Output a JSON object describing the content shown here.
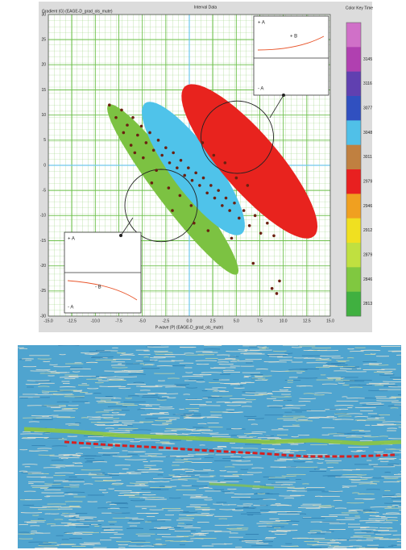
{
  "chart_data": {
    "type": "scatter",
    "title": "Interval Data",
    "ylabel": "Gradient (G) (EAGE-D_grad_ols_mute)",
    "xlabel": "P-wave (P) (EAGE-D_grad_ols_mute)",
    "xlim": [
      -15,
      15
    ],
    "ylim": [
      -30,
      30
    ],
    "xticks": [
      {
        "value": -15,
        "label": "-15.0"
      },
      {
        "value": -12.5,
        "label": "-12.5"
      },
      {
        "value": -10,
        "label": "-10.0"
      },
      {
        "value": -7.5,
        "label": "-7.5"
      },
      {
        "value": -5,
        "label": "-5.0"
      },
      {
        "value": -2.5,
        "label": "-2.5"
      },
      {
        "value": 0,
        "label": "0.0"
      },
      {
        "value": 2.5,
        "label": "2.5"
      },
      {
        "value": 5,
        "label": "5.0"
      },
      {
        "value": 7.5,
        "label": "7.5"
      },
      {
        "value": 10,
        "label": "10.0"
      },
      {
        "value": 12.5,
        "label": "12.5"
      },
      {
        "value": 15,
        "label": "15.0"
      }
    ],
    "yticks": [
      -30,
      -25,
      -20,
      -15,
      -10,
      -5,
      0,
      5,
      10,
      15,
      20,
      25,
      30
    ],
    "grid": true,
    "grid_color": "#6cc04a",
    "regions": [
      {
        "color": "#7cc242",
        "filled": true,
        "cx": -1.75,
        "cy": -4.8,
        "ax": 6.85,
        "ay": -16.85,
        "bx": 1.37,
        "by": 1.93
      },
      {
        "color": "#4fc3ea",
        "filled": true,
        "cx": 0.43,
        "cy": -0.64,
        "ax": 5.14,
        "ay": -13.0,
        "bx": 1.9,
        "by": 2.7
      },
      {
        "color": "#e8231e",
        "filled": true,
        "cx": 6.4,
        "cy": 0.8,
        "ax": 6.86,
        "ay": -14.9,
        "bx": 2.3,
        "by": 3.7
      },
      {
        "color": "#222222",
        "filled": false,
        "cx": 5.1,
        "cy": 5.6,
        "ax": 3.86,
        "ay": 0,
        "bx": 0,
        "by": 7.2
      },
      {
        "color": "#222222",
        "filled": false,
        "cx": -3.0,
        "cy": -8.0,
        "ax": 3.86,
        "ay": 0,
        "bx": 0,
        "by": 7.2
      }
    ],
    "points": {
      "color": "#6b2010",
      "x": [
        -8.5,
        -7.8,
        -7.2,
        -6.6,
        -6.0,
        -5.5,
        -5.1,
        -4.6,
        -4.2,
        -3.8,
        -3.3,
        -2.9,
        -2.5,
        -2.1,
        -1.7,
        -1.3,
        -0.9,
        -0.5,
        -0.1,
        0.3,
        0.7,
        1.1,
        1.5,
        1.9,
        2.3,
        2.7,
        3.1,
        3.5,
        3.9,
        4.3,
        4.8,
        5.3,
        5.8,
        6.4,
        7.0,
        7.6,
        8.3,
        9.0,
        -6.2,
        -4.9,
        -3.5,
        -2.2,
        -1.0,
        0.2,
        1.4,
        2.6,
        3.8,
        5.0,
        6.2,
        -7.0,
        -5.8,
        -4.0,
        -1.8,
        0.5,
        2.0,
        4.5,
        8.8,
        9.3,
        6.8,
        9.6
      ],
      "y": [
        12.0,
        9.5,
        11.0,
        8.0,
        9.5,
        6.0,
        7.8,
        4.5,
        6.5,
        3.0,
        5.0,
        2.0,
        3.5,
        0.5,
        2.5,
        -0.5,
        1.0,
        -2.0,
        -0.5,
        -3.0,
        -1.5,
        -4.0,
        -2.5,
        -5.5,
        -4.0,
        -6.5,
        -5.0,
        -8.0,
        -6.5,
        -9.0,
        -7.5,
        -10.5,
        -9.0,
        -12.0,
        -10.0,
        -13.5,
        -11.5,
        -14.0,
        4.0,
        1.5,
        -1.0,
        -4.5,
        -6.0,
        -8.0,
        4.5,
        2.0,
        0.5,
        -2.5,
        -4.0,
        6.5,
        2.5,
        -3.5,
        -9.0,
        -11.5,
        -13.0,
        -14.5,
        -24.5,
        -25.5,
        -19.5,
        -23.0
      ]
    },
    "colorbar": {
      "title": "Color Key Time",
      "colors": [
        "#d070c8",
        "#b040b0",
        "#6040b0",
        "#3050c0",
        "#50c0e8",
        "#c08040",
        "#e82020",
        "#f0a020",
        "#f0e020",
        "#c0e040",
        "#80c840",
        "#40b040"
      ],
      "ticks": [
        3145,
        3116,
        3077,
        3048,
        3011,
        2979,
        2946,
        2912,
        2879,
        2846,
        2813
      ]
    },
    "annotations": [
      "+ A",
      "+ B",
      "- A",
      "+ A",
      "- B",
      "- A"
    ]
  }
}
